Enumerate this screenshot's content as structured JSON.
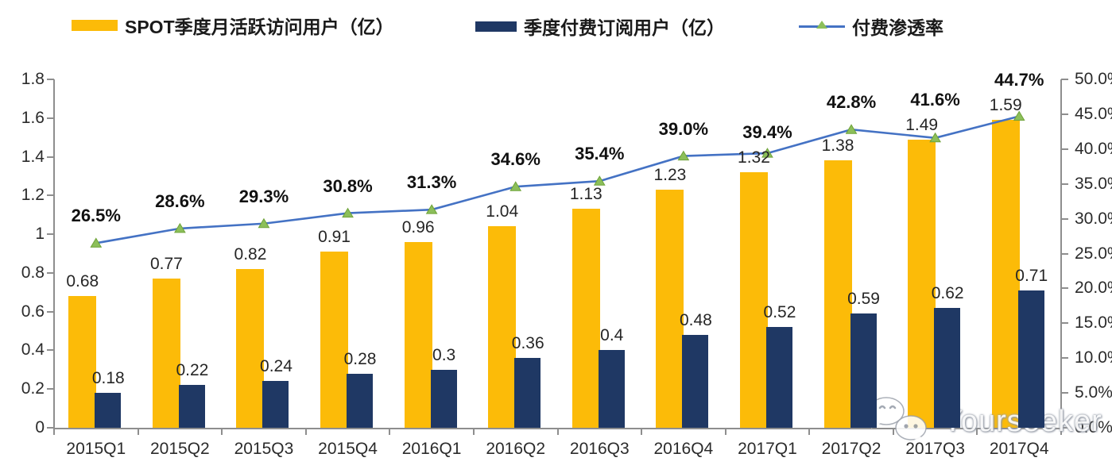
{
  "legend": {
    "items": [
      {
        "label": "SPOT季度月活跃访问用户（亿）",
        "swatch": "bar",
        "color": "#FCBB08"
      },
      {
        "label": "季度付费订阅用户（亿）",
        "swatch": "bar",
        "color": "#1F3864"
      },
      {
        "label": "付费渗透率",
        "swatch": "line-triangle",
        "line_color": "#4472C4",
        "marker_color": "#8CBF5A"
      }
    ]
  },
  "chart_data": {
    "type": "combo-bar-line",
    "title": "",
    "categories": [
      "2015Q1",
      "2015Q2",
      "2015Q3",
      "2015Q4",
      "2016Q1",
      "2016Q2",
      "2016Q3",
      "2016Q4",
      "2017Q1",
      "2017Q2",
      "2017Q3",
      "2017Q4"
    ],
    "series": [
      {
        "name": "SPOT季度月活跃访问用户（亿）",
        "type": "bar",
        "axis": "left",
        "color": "#FCBB08",
        "values": [
          0.68,
          0.77,
          0.82,
          0.91,
          0.96,
          1.04,
          1.13,
          1.23,
          1.32,
          1.38,
          1.49,
          1.59
        ],
        "labels": [
          "0.68",
          "0.77",
          "0.82",
          "0.91",
          "0.96",
          "1.04",
          "1.13",
          "1.23",
          "1.32",
          "1.38",
          "1.49",
          "1.59"
        ]
      },
      {
        "name": "季度付费订阅用户（亿）",
        "type": "bar",
        "axis": "left",
        "color": "#1F3864",
        "values": [
          0.18,
          0.22,
          0.24,
          0.28,
          0.3,
          0.36,
          0.4,
          0.48,
          0.52,
          0.59,
          0.62,
          0.71
        ],
        "labels": [
          "0.18",
          "0.22",
          "0.24",
          "0.28",
          "0.3",
          "0.36",
          "0.4",
          "0.48",
          "0.52",
          "0.59",
          "0.62",
          "0.71"
        ]
      },
      {
        "name": "付费渗透率",
        "type": "line",
        "axis": "right",
        "color": "#4472C4",
        "marker": "triangle",
        "marker_color": "#8CBF5A",
        "marker_edge_color": "#6FA339",
        "values": [
          26.5,
          28.6,
          29.3,
          30.8,
          31.3,
          34.6,
          35.4,
          39.0,
          39.4,
          42.8,
          41.6,
          44.7
        ],
        "labels": [
          "26.5%",
          "28.6%",
          "29.3%",
          "30.8%",
          "31.3%",
          "34.6%",
          "35.4%",
          "39.0%",
          "39.4%",
          "42.8%",
          "41.6%",
          "44.7%"
        ]
      }
    ],
    "left_axis": {
      "min": 0,
      "max": 1.8,
      "step": 0.2,
      "tick_labels_top_to_bottom": [
        "1.8",
        "1.6",
        "1.4",
        "1.2",
        "1",
        "0.8",
        "0.6",
        "0.4",
        "0.2",
        "0"
      ]
    },
    "right_axis": {
      "min": 0,
      "max": 50,
      "step": 5,
      "tick_labels_top_to_bottom": [
        "50.0%",
        "45.0%",
        "40.0%",
        "35.0%",
        "30.0%",
        "25.0%",
        "20.0%",
        "15.0%",
        "10.0%",
        "5.0%",
        "0.0%"
      ]
    },
    "grid": false,
    "legend_position": "top"
  },
  "watermark": {
    "text": "Yourseeker",
    "icon": "wechat-icon"
  }
}
